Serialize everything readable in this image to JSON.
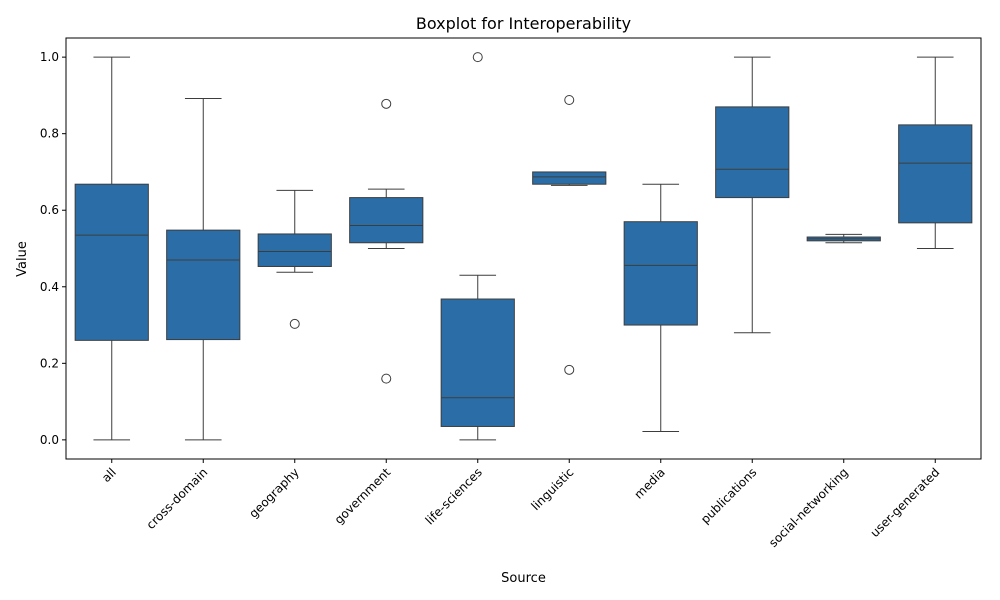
{
  "chart_data": {
    "type": "boxplot",
    "title": "Boxplot for Interoperability",
    "xlabel": "Source",
    "ylabel": "Value",
    "ylim": [
      -0.05,
      1.05
    ],
    "yticks": [
      "0.0",
      "0.2",
      "0.4",
      "0.6",
      "0.8",
      "1.0"
    ],
    "ytick_values": [
      0.0,
      0.2,
      0.4,
      0.6,
      0.8,
      1.0
    ],
    "color": "#2b6ea7",
    "edge_color": "#3d3d3d",
    "grid": false,
    "categories": [
      "all",
      "cross-domain",
      "geography",
      "government",
      "life-sciences",
      "linguistic",
      "media",
      "publications",
      "social-networking",
      "user-generated"
    ],
    "boxes": [
      {
        "category": "all",
        "whisker_low": 0.0,
        "q1": 0.26,
        "median": 0.535,
        "q3": 0.668,
        "whisker_high": 1.0,
        "outliers": []
      },
      {
        "category": "cross-domain",
        "whisker_low": 0.0,
        "q1": 0.262,
        "median": 0.47,
        "q3": 0.548,
        "whisker_high": 0.892,
        "outliers": []
      },
      {
        "category": "geography",
        "whisker_low": 0.438,
        "q1": 0.453,
        "median": 0.492,
        "q3": 0.538,
        "whisker_high": 0.652,
        "outliers": [
          0.303
        ]
      },
      {
        "category": "government",
        "whisker_low": 0.5,
        "q1": 0.515,
        "median": 0.56,
        "q3": 0.633,
        "whisker_high": 0.655,
        "outliers": [
          0.878,
          0.16
        ]
      },
      {
        "category": "life-sciences",
        "whisker_low": 0.0,
        "q1": 0.035,
        "median": 0.11,
        "q3": 0.368,
        "whisker_high": 0.43,
        "outliers": [
          1.0
        ]
      },
      {
        "category": "linguistic",
        "whisker_low": 0.665,
        "q1": 0.668,
        "median": 0.687,
        "q3": 0.7,
        "whisker_high": 0.7,
        "outliers": [
          0.888,
          0.183
        ]
      },
      {
        "category": "media",
        "whisker_low": 0.022,
        "q1": 0.3,
        "median": 0.456,
        "q3": 0.57,
        "whisker_high": 0.668,
        "outliers": []
      },
      {
        "category": "publications",
        "whisker_low": 0.28,
        "q1": 0.633,
        "median": 0.707,
        "q3": 0.87,
        "whisker_high": 1.0,
        "outliers": []
      },
      {
        "category": "social-networking",
        "whisker_low": 0.515,
        "q1": 0.52,
        "median": 0.525,
        "q3": 0.53,
        "whisker_high": 0.537,
        "outliers": []
      },
      {
        "category": "user-generated",
        "whisker_low": 0.5,
        "q1": 0.567,
        "median": 0.723,
        "q3": 0.823,
        "whisker_high": 1.0,
        "outliers": []
      }
    ]
  }
}
